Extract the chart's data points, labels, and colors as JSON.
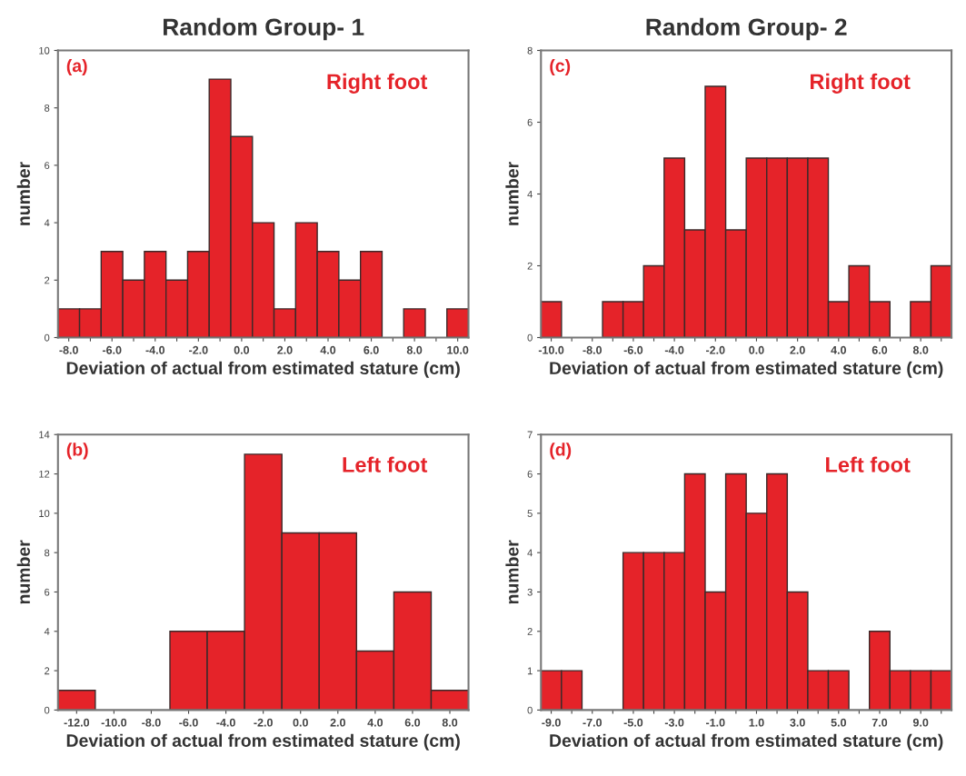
{
  "chart_data": [
    {
      "type": "histogram",
      "title": "Random Group- 1",
      "xlabel": "Deviation of actual from estimated stature (cm)",
      "ylabel": "number",
      "annotations": [
        "(a)",
        "Right foot"
      ],
      "color": "#e52329",
      "bins": [
        -8.5,
        -7.5,
        -6.5,
        -5.5,
        -4.5,
        -3.5,
        -2.5,
        -1.5,
        -0.5,
        0.5,
        1.5,
        2.5,
        3.5,
        4.5,
        5.5,
        6.5,
        7.5,
        8.5,
        9.5,
        10.5
      ],
      "values": [
        1,
        1,
        3,
        2,
        3,
        2,
        3,
        9,
        7,
        4,
        1,
        4,
        3,
        2,
        3,
        0,
        1,
        0,
        1
      ],
      "xlim": [
        -8.5,
        10.5
      ],
      "ylim": [
        0,
        10
      ],
      "yticks": [
        0,
        2,
        4,
        6,
        8,
        10
      ],
      "xticks": [
        {
          "value": -8,
          "label": "-8.0"
        },
        {
          "value": -7,
          "label": null
        },
        {
          "value": -6,
          "label": "-6.0"
        },
        {
          "value": -5,
          "label": null
        },
        {
          "value": -4,
          "label": "-4.0"
        },
        {
          "value": -3,
          "label": null
        },
        {
          "value": -2,
          "label": "-2.0"
        },
        {
          "value": -1,
          "label": null
        },
        {
          "value": 0,
          "label": "0.0"
        },
        {
          "value": 1,
          "label": null
        },
        {
          "value": 2,
          "label": "2.0"
        },
        {
          "value": 3,
          "label": null
        },
        {
          "value": 4,
          "label": "4.0"
        },
        {
          "value": 5,
          "label": null
        },
        {
          "value": 6,
          "label": "6.0"
        },
        {
          "value": 7,
          "label": null
        },
        {
          "value": 8,
          "label": "8.0"
        },
        {
          "value": 9,
          "label": null
        },
        {
          "value": 10,
          "label": "10.0"
        }
      ]
    },
    {
      "type": "histogram",
      "xlabel": "Deviation of actual from estimated stature (cm)",
      "ylabel": "number",
      "annotations": [
        "(b)",
        "Left foot"
      ],
      "color": "#e52329",
      "bins": [
        -13,
        -11,
        -9,
        -7,
        -5,
        -3,
        -1,
        1,
        3,
        5,
        7,
        9
      ],
      "values": [
        1,
        0,
        0,
        4,
        4,
        13,
        9,
        9,
        3,
        6,
        1
      ],
      "xlim": [
        -13,
        9
      ],
      "ylim": [
        0,
        14
      ],
      "yticks": [
        0,
        2,
        4,
        6,
        8,
        10,
        12,
        14
      ],
      "xticks": [
        {
          "value": -12,
          "label": "-12.0"
        },
        {
          "value": -10,
          "label": "-10.0"
        },
        {
          "value": -8,
          "label": "-8.0"
        },
        {
          "value": -6,
          "label": "-6.0"
        },
        {
          "value": -4,
          "label": "-4.0"
        },
        {
          "value": -2,
          "label": "-2.0"
        },
        {
          "value": 0,
          "label": "0.0"
        },
        {
          "value": 2,
          "label": "2.0"
        },
        {
          "value": 4,
          "label": "4.0"
        },
        {
          "value": 6,
          "label": "6.0"
        },
        {
          "value": 8,
          "label": "8.0"
        }
      ]
    },
    {
      "type": "histogram",
      "title": "Random Group- 2",
      "xlabel": "Deviation of actual from estimated stature (cm)",
      "ylabel": "number",
      "annotations": [
        "(c)",
        "Right foot"
      ],
      "color": "#e52329",
      "bins": [
        -10.5,
        -9.5,
        -8.5,
        -7.5,
        -6.5,
        -5.5,
        -4.5,
        -3.5,
        -2.5,
        -1.5,
        -0.5,
        0.5,
        1.5,
        2.5,
        3.5,
        4.5,
        5.5,
        6.5,
        7.5,
        8.5,
        9.5
      ],
      "values": [
        1,
        0,
        0,
        1,
        1,
        2,
        5,
        3,
        7,
        3,
        5,
        5,
        5,
        5,
        1,
        2,
        1,
        0,
        1,
        2
      ],
      "xlim": [
        -10.5,
        9.5
      ],
      "ylim": [
        0,
        8
      ],
      "yticks": [
        0,
        2,
        4,
        6,
        8
      ],
      "xticks": [
        {
          "value": -10,
          "label": "-10.0"
        },
        {
          "value": -9,
          "label": null
        },
        {
          "value": -8,
          "label": "-8.0"
        },
        {
          "value": -7,
          "label": null
        },
        {
          "value": -6,
          "label": "-6.0"
        },
        {
          "value": -5,
          "label": null
        },
        {
          "value": -4,
          "label": "-4.0"
        },
        {
          "value": -3,
          "label": null
        },
        {
          "value": -2,
          "label": "-2.0"
        },
        {
          "value": -1,
          "label": null
        },
        {
          "value": 0,
          "label": "0.0"
        },
        {
          "value": 1,
          "label": null
        },
        {
          "value": 2,
          "label": "2.0"
        },
        {
          "value": 3,
          "label": null
        },
        {
          "value": 4,
          "label": "4.0"
        },
        {
          "value": 5,
          "label": null
        },
        {
          "value": 6,
          "label": "6.0"
        },
        {
          "value": 7,
          "label": null
        },
        {
          "value": 8,
          "label": "8.0"
        },
        {
          "value": 9,
          "label": null
        }
      ]
    },
    {
      "type": "histogram",
      "xlabel": "Deviation of actual from estimated stature (cm)",
      "ylabel": "number",
      "annotations": [
        "(d)",
        "Left foot"
      ],
      "color": "#e52329",
      "bins": [
        -9.5,
        -8.5,
        -7.5,
        -6.5,
        -5.5,
        -4.5,
        -3.5,
        -2.5,
        -1.5,
        -0.5,
        0.5,
        1.5,
        2.5,
        3.5,
        4.5,
        5.5,
        6.5,
        7.5,
        8.5,
        9.5,
        10.5
      ],
      "values": [
        1,
        1,
        0,
        0,
        4,
        4,
        4,
        6,
        3,
        6,
        5,
        6,
        3,
        1,
        1,
        0,
        2,
        1,
        1,
        1
      ],
      "xlim": [
        -9.5,
        10.5
      ],
      "ylim": [
        0,
        7
      ],
      "yticks": [
        0,
        1,
        2,
        3,
        4,
        5,
        6,
        7
      ],
      "xticks": [
        {
          "value": -9,
          "label": "-9.0"
        },
        {
          "value": -8,
          "label": null
        },
        {
          "value": -7,
          "label": "-7.0"
        },
        {
          "value": -6,
          "label": null
        },
        {
          "value": -5,
          "label": "-5.0"
        },
        {
          "value": -4,
          "label": null
        },
        {
          "value": -3,
          "label": "-3.0"
        },
        {
          "value": -2,
          "label": null
        },
        {
          "value": -1,
          "label": "-1.0"
        },
        {
          "value": 0,
          "label": null
        },
        {
          "value": 1,
          "label": "1.0"
        },
        {
          "value": 2,
          "label": null
        },
        {
          "value": 3,
          "label": "3.0"
        },
        {
          "value": 4,
          "label": null
        },
        {
          "value": 5,
          "label": "5.0"
        },
        {
          "value": 6,
          "label": null
        },
        {
          "value": 7,
          "label": "7.0"
        },
        {
          "value": 8,
          "label": null
        },
        {
          "value": 9,
          "label": "9.0"
        },
        {
          "value": 10,
          "label": null
        }
      ]
    }
  ]
}
